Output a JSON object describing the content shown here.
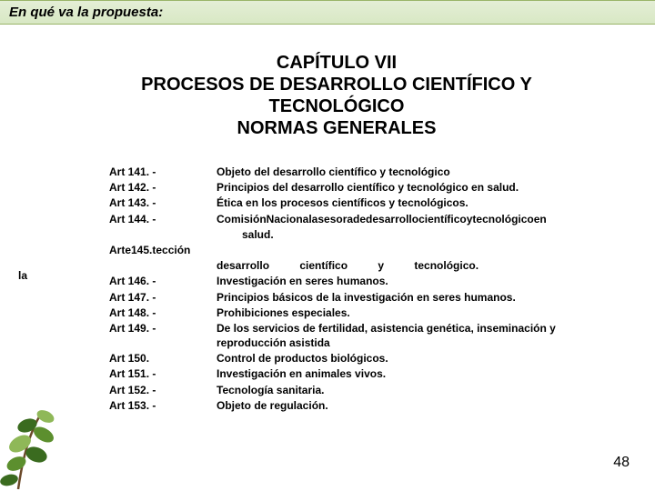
{
  "header": {
    "title": "En qué va la propuesta:"
  },
  "chapter": {
    "line1": "CAPÍTULO VII",
    "line2": "PROCESOS DE DESARROLLO CIENTÍFICO Y TECNOLÓGICO",
    "line3": "NORMAS GENERALES"
  },
  "float_la": "la",
  "articles": [
    {
      "label": "Art 141. -",
      "desc": "Objeto del desarrollo científico y tecnológico"
    },
    {
      "label": "Art 142. -",
      "desc": "Principios del desarrollo científico y tecnológico en salud."
    },
    {
      "label": "Art 143. -",
      "desc": "Ética en los procesos científicos y tecnológicos."
    },
    {
      "label": "Art 144. -",
      "desc": "ComisiónNacionalasesoradedesarrollocientíficoytecnológicoen"
    },
    {
      "label": "",
      "desc_class": "salud-indent",
      "desc": "salud."
    },
    {
      "label": "Arte145.tección",
      "desc": ""
    },
    {
      "label": "",
      "desc_class": "desarrollo-line",
      "desc": "desarrollo científico y tecnológico."
    },
    {
      "label": "Art 146. -",
      "desc": "Investigación en seres humanos."
    },
    {
      "label": "Art 147. -",
      "desc": "Principios básicos de la investigación en seres humanos."
    },
    {
      "label": "Art 148. -",
      "desc": "Prohibiciones especiales."
    },
    {
      "label": "Art 149. -",
      "desc": "De los servicios de fertilidad, asistencia genética, inseminación y reproducción asistida"
    },
    {
      "label": "Art 150.",
      "desc": "Control de productos biológicos."
    },
    {
      "label": "Art 151. -",
      "desc": "Investigación en animales vivos."
    },
    {
      "label": "Art 152. -",
      "desc": "Tecnología sanitaria."
    },
    {
      "label": "Art 153. -",
      "desc": "Objeto de regulación."
    }
  ],
  "page_number": "48",
  "plant_colors": {
    "leaf_dark": "#3a6b1f",
    "leaf_mid": "#5c8f2e",
    "leaf_light": "#8fb858",
    "stem": "#6b4a2a"
  }
}
